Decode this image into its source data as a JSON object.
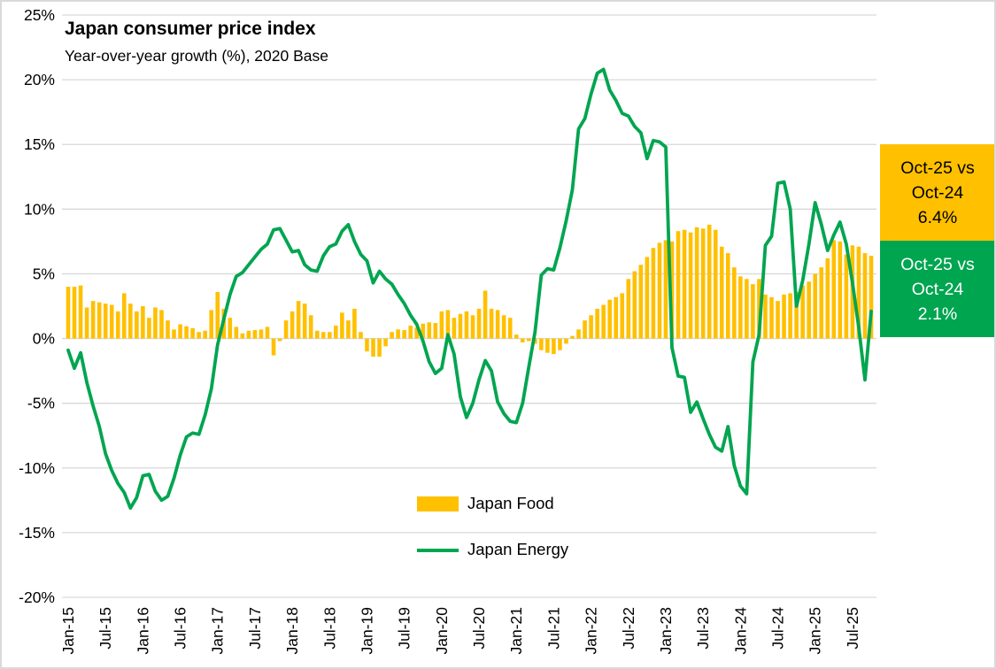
{
  "page": {
    "title": "Japan consumer price index",
    "subtitle": "Year-over-year growth (%), 2020 Base"
  },
  "legend": {
    "items": [
      {
        "label": "Japan Food",
        "swatch": "bar",
        "color": "#FFC000"
      },
      {
        "label": "Japan Energy",
        "swatch": "line",
        "color": "#00A550"
      }
    ]
  },
  "callouts": [
    {
      "series": "Japan Food",
      "lines": [
        "Oct-25 vs",
        "Oct-24",
        "6.4%"
      ],
      "bg": "#FFC000",
      "fg": "#000000"
    },
    {
      "series": "Japan Energy",
      "lines": [
        "Oct-25 vs",
        "Oct-24",
        "2.1%"
      ],
      "bg": "#00A550",
      "fg": "#FFFFFF"
    }
  ],
  "chart_data": {
    "type": "bar",
    "combo": "bar+line",
    "title": "Japan consumer price index",
    "subtitle": "Year-over-year growth (%), 2020 Base",
    "x_start": "Jan-2015",
    "x_end": "Oct-2025",
    "x_frequency": "monthly",
    "ylim": [
      -20,
      25
    ],
    "y_step": 5,
    "grid": "horizontal",
    "gridline_color": "#D9D9D9",
    "y_tick_labels": [
      "25%",
      "20%",
      "15%",
      "10%",
      "5%",
      "0%",
      "-5%",
      "-10%",
      "-15%",
      "-20%"
    ],
    "x_tick_labels": [
      "Jan-15",
      "Jul-15",
      "Jan-16",
      "Jul-16",
      "Jan-17",
      "Jul-17",
      "Jan-18",
      "Jul-18",
      "Jan-19",
      "Jul-19",
      "Jan-20",
      "Jul-20",
      "Jan-21",
      "Jul-21",
      "Jan-22",
      "Jul-22",
      "Jan-23",
      "Jul-23",
      "Jan-24",
      "Jul-24",
      "Jan-25",
      "Jul-25"
    ],
    "x_tick_every_n_months": 6,
    "series": [
      {
        "name": "Japan Food",
        "type": "bar",
        "color": "#FFC000",
        "values": [
          4.0,
          4.0,
          4.1,
          2.4,
          2.9,
          2.8,
          2.7,
          2.6,
          2.1,
          3.5,
          2.7,
          2.1,
          2.5,
          1.6,
          2.4,
          2.2,
          1.4,
          0.7,
          1.1,
          0.95,
          0.8,
          0.5,
          0.6,
          2.2,
          3.6,
          2.3,
          1.6,
          0.9,
          0.4,
          0.6,
          0.65,
          0.7,
          0.9,
          -1.3,
          -0.2,
          1.4,
          2.1,
          2.9,
          2.7,
          1.8,
          0.6,
          0.5,
          0.5,
          1.0,
          2.0,
          1.4,
          2.3,
          0.5,
          -1.0,
          -1.4,
          -1.4,
          -0.6,
          0.5,
          0.7,
          0.65,
          1.0,
          0.85,
          1.15,
          1.25,
          1.2,
          2.1,
          2.2,
          1.6,
          1.9,
          2.1,
          1.8,
          2.3,
          3.7,
          2.3,
          2.2,
          1.8,
          1.6,
          0.3,
          -0.3,
          -0.2,
          -0.4,
          -0.9,
          -1.1,
          -1.2,
          -0.9,
          -0.4,
          0.2,
          0.7,
          1.4,
          1.8,
          2.3,
          2.6,
          3.0,
          3.2,
          3.5,
          4.6,
          5.2,
          5.7,
          6.3,
          7.0,
          7.4,
          7.6,
          7.5,
          8.3,
          8.4,
          8.2,
          8.6,
          8.5,
          8.8,
          8.4,
          7.1,
          6.6,
          5.5,
          4.8,
          4.6,
          4.2,
          4.6,
          3.4,
          3.2,
          2.9,
          3.4,
          3.5,
          3.6,
          4.1,
          4.4,
          5.0,
          5.5,
          6.2,
          7.6,
          7.5,
          6.5,
          7.2,
          7.1,
          6.6,
          6.4
        ]
      },
      {
        "name": "Japan Energy",
        "type": "line",
        "color": "#00A550",
        "values": [
          -0.9,
          -2.3,
          -1.1,
          -3.4,
          -5.2,
          -6.8,
          -8.9,
          -10.2,
          -11.2,
          -11.9,
          -13.1,
          -12.3,
          -10.6,
          -10.5,
          -11.8,
          -12.5,
          -12.2,
          -10.8,
          -9.0,
          -7.6,
          -7.3,
          -7.4,
          -5.9,
          -3.9,
          -0.5,
          1.5,
          3.4,
          4.8,
          5.1,
          5.7,
          6.3,
          6.9,
          7.3,
          8.4,
          8.5,
          7.6,
          6.7,
          6.8,
          5.7,
          5.3,
          5.2,
          6.4,
          7.1,
          7.3,
          8.3,
          8.8,
          7.5,
          6.5,
          6.0,
          4.3,
          5.2,
          4.6,
          4.2,
          3.4,
          2.7,
          1.8,
          1.1,
          -0.2,
          -1.8,
          -2.7,
          -2.3,
          0.3,
          -1.2,
          -4.5,
          -6.1,
          -5.0,
          -3.2,
          -1.7,
          -2.5,
          -4.9,
          -5.8,
          -6.4,
          -6.5,
          -5.0,
          -2.2,
          0.5,
          4.9,
          5.4,
          5.3,
          7.0,
          9.1,
          11.5,
          16.2,
          17.0,
          18.9,
          20.5,
          20.8,
          19.2,
          18.4,
          17.4,
          17.2,
          16.4,
          15.9,
          13.9,
          15.3,
          15.2,
          14.8,
          -0.7,
          -2.9,
          -3.0,
          -5.7,
          -4.9,
          -6.2,
          -7.4,
          -8.4,
          -8.7,
          -6.8,
          -9.8,
          -11.4,
          -12.0,
          -1.8,
          0.3,
          7.2,
          7.9,
          12.0,
          12.1,
          10.0,
          2.5,
          4.5,
          7.3,
          10.5,
          8.8,
          6.8,
          8.0,
          9.0,
          7.3,
          4.3,
          0.9,
          -3.2,
          2.1
        ]
      }
    ],
    "legend_position": "center-bottom-inside",
    "annotations": [
      {
        "target": "Japan Food",
        "text": "Oct-25 vs Oct-24 6.4%"
      },
      {
        "target": "Japan Energy",
        "text": "Oct-25 vs Oct-24 2.1%"
      }
    ]
  }
}
